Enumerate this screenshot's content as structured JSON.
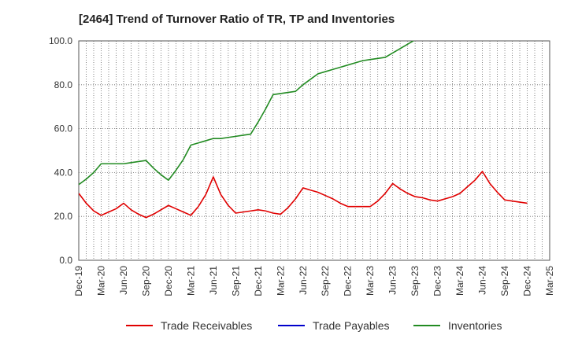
{
  "chart_data": {
    "type": "line",
    "title": "[2464]  Trend of Turnover Ratio of TR, TP and Inventories",
    "xlabel": "",
    "ylabel": "",
    "ylim": [
      0,
      100
    ],
    "yticks": [
      "0.0",
      "20.0",
      "40.0",
      "60.0",
      "80.0",
      "100.0"
    ],
    "x_tick_labels": [
      "Dec-19",
      "Mar-20",
      "Jun-20",
      "Sep-20",
      "Dec-20",
      "Mar-21",
      "Jun-21",
      "Sep-21",
      "Dec-21",
      "Mar-22",
      "Jun-22",
      "Sep-22",
      "Dec-22",
      "Mar-23",
      "Jun-23",
      "Sep-23",
      "Dec-23",
      "Mar-24",
      "Jun-24",
      "Sep-24",
      "Dec-24",
      "Mar-25"
    ],
    "grid": true,
    "legend_position": "bottom",
    "series": [
      {
        "name": "Trade Receivables",
        "color": "#e00000",
        "values": [
          30.5,
          26,
          22.5,
          20.5,
          22,
          23.5,
          26,
          23,
          21,
          19.5,
          21,
          23,
          25,
          23.5,
          22,
          20.5,
          24.5,
          30,
          38,
          30,
          25,
          21.5,
          22,
          22.5,
          23,
          22.5,
          21.5,
          21,
          24,
          28,
          33,
          32,
          31,
          29.5,
          28,
          26,
          24.5,
          24.5,
          24.5,
          24.5,
          27,
          30.5,
          35,
          32.5,
          30.5,
          29,
          28.5,
          27.5,
          27,
          28,
          29,
          30.5,
          33.5,
          36.5,
          40.5,
          35,
          31,
          27.5,
          27,
          26.5,
          26
        ]
      },
      {
        "name": "Trade Payables",
        "color": "#0000cc",
        "values": []
      },
      {
        "name": "Inventories",
        "color": "#228B22",
        "values": [
          34.5,
          37,
          40,
          44,
          44,
          44,
          44,
          44.5,
          45,
          45.5,
          42,
          39,
          36.5,
          41,
          46,
          52.5,
          53.5,
          54.5,
          55.5,
          55.5,
          56,
          56.5,
          57,
          57.5,
          63,
          69,
          75.5,
          76,
          76.5,
          77,
          80,
          82.5,
          85,
          86,
          87,
          88,
          89,
          90,
          91,
          91.5,
          92,
          92.5,
          94.5,
          96.5,
          98.5,
          100.5
        ]
      }
    ]
  }
}
